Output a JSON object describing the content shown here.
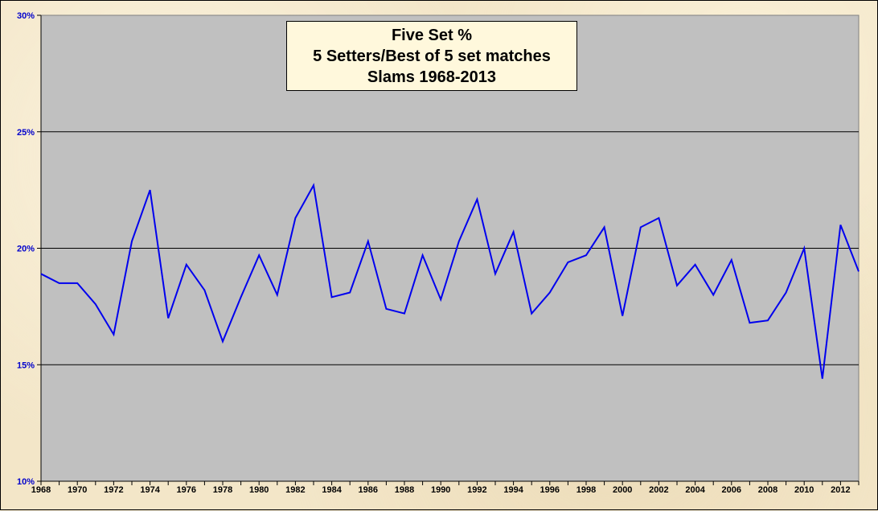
{
  "chart_data": {
    "type": "line",
    "title_lines": [
      "Five Set %",
      "5 Setters/Best of 5 set matches",
      "Slams 1968-2013"
    ],
    "x": [
      1968,
      1969,
      1970,
      1971,
      1972,
      1973,
      1974,
      1975,
      1976,
      1977,
      1978,
      1979,
      1980,
      1981,
      1982,
      1983,
      1984,
      1985,
      1986,
      1987,
      1988,
      1989,
      1990,
      1991,
      1992,
      1993,
      1994,
      1995,
      1996,
      1997,
      1998,
      1999,
      2000,
      2001,
      2002,
      2003,
      2004,
      2005,
      2006,
      2007,
      2008,
      2009,
      2010,
      2011,
      2012,
      2013
    ],
    "x_tick_labels": [
      "1968",
      "1970",
      "1972",
      "1974",
      "1976",
      "1978",
      "1980",
      "1982",
      "1984",
      "1986",
      "1988",
      "1990",
      "1992",
      "1994",
      "1996",
      "1998",
      "2000",
      "2002",
      "2004",
      "2006",
      "2008",
      "2010",
      "2012"
    ],
    "series": [
      {
        "color": "#0000ee",
        "values": [
          18.9,
          18.5,
          18.5,
          17.6,
          16.3,
          20.3,
          22.5,
          17.0,
          19.3,
          18.2,
          16.0,
          17.9,
          19.7,
          18.0,
          21.3,
          22.7,
          17.9,
          18.1,
          20.3,
          17.4,
          17.2,
          19.7,
          17.8,
          20.3,
          22.1,
          18.9,
          20.7,
          17.2,
          18.1,
          19.4,
          19.7,
          20.9,
          17.1,
          20.9,
          21.3,
          18.4,
          19.3,
          18.0,
          19.5,
          16.8,
          16.9,
          18.1,
          20.0,
          14.4,
          21.0,
          19.0
        ]
      }
    ],
    "ylim": [
      10,
      30
    ],
    "y_ticks": [
      10,
      15,
      20,
      25,
      30
    ],
    "y_tick_labels": [
      "10%",
      "15%",
      "20%",
      "25%",
      "30%"
    ],
    "grid": "horizontal",
    "plot_bg": "#c0c0c0",
    "gridline_color": "#000000"
  }
}
